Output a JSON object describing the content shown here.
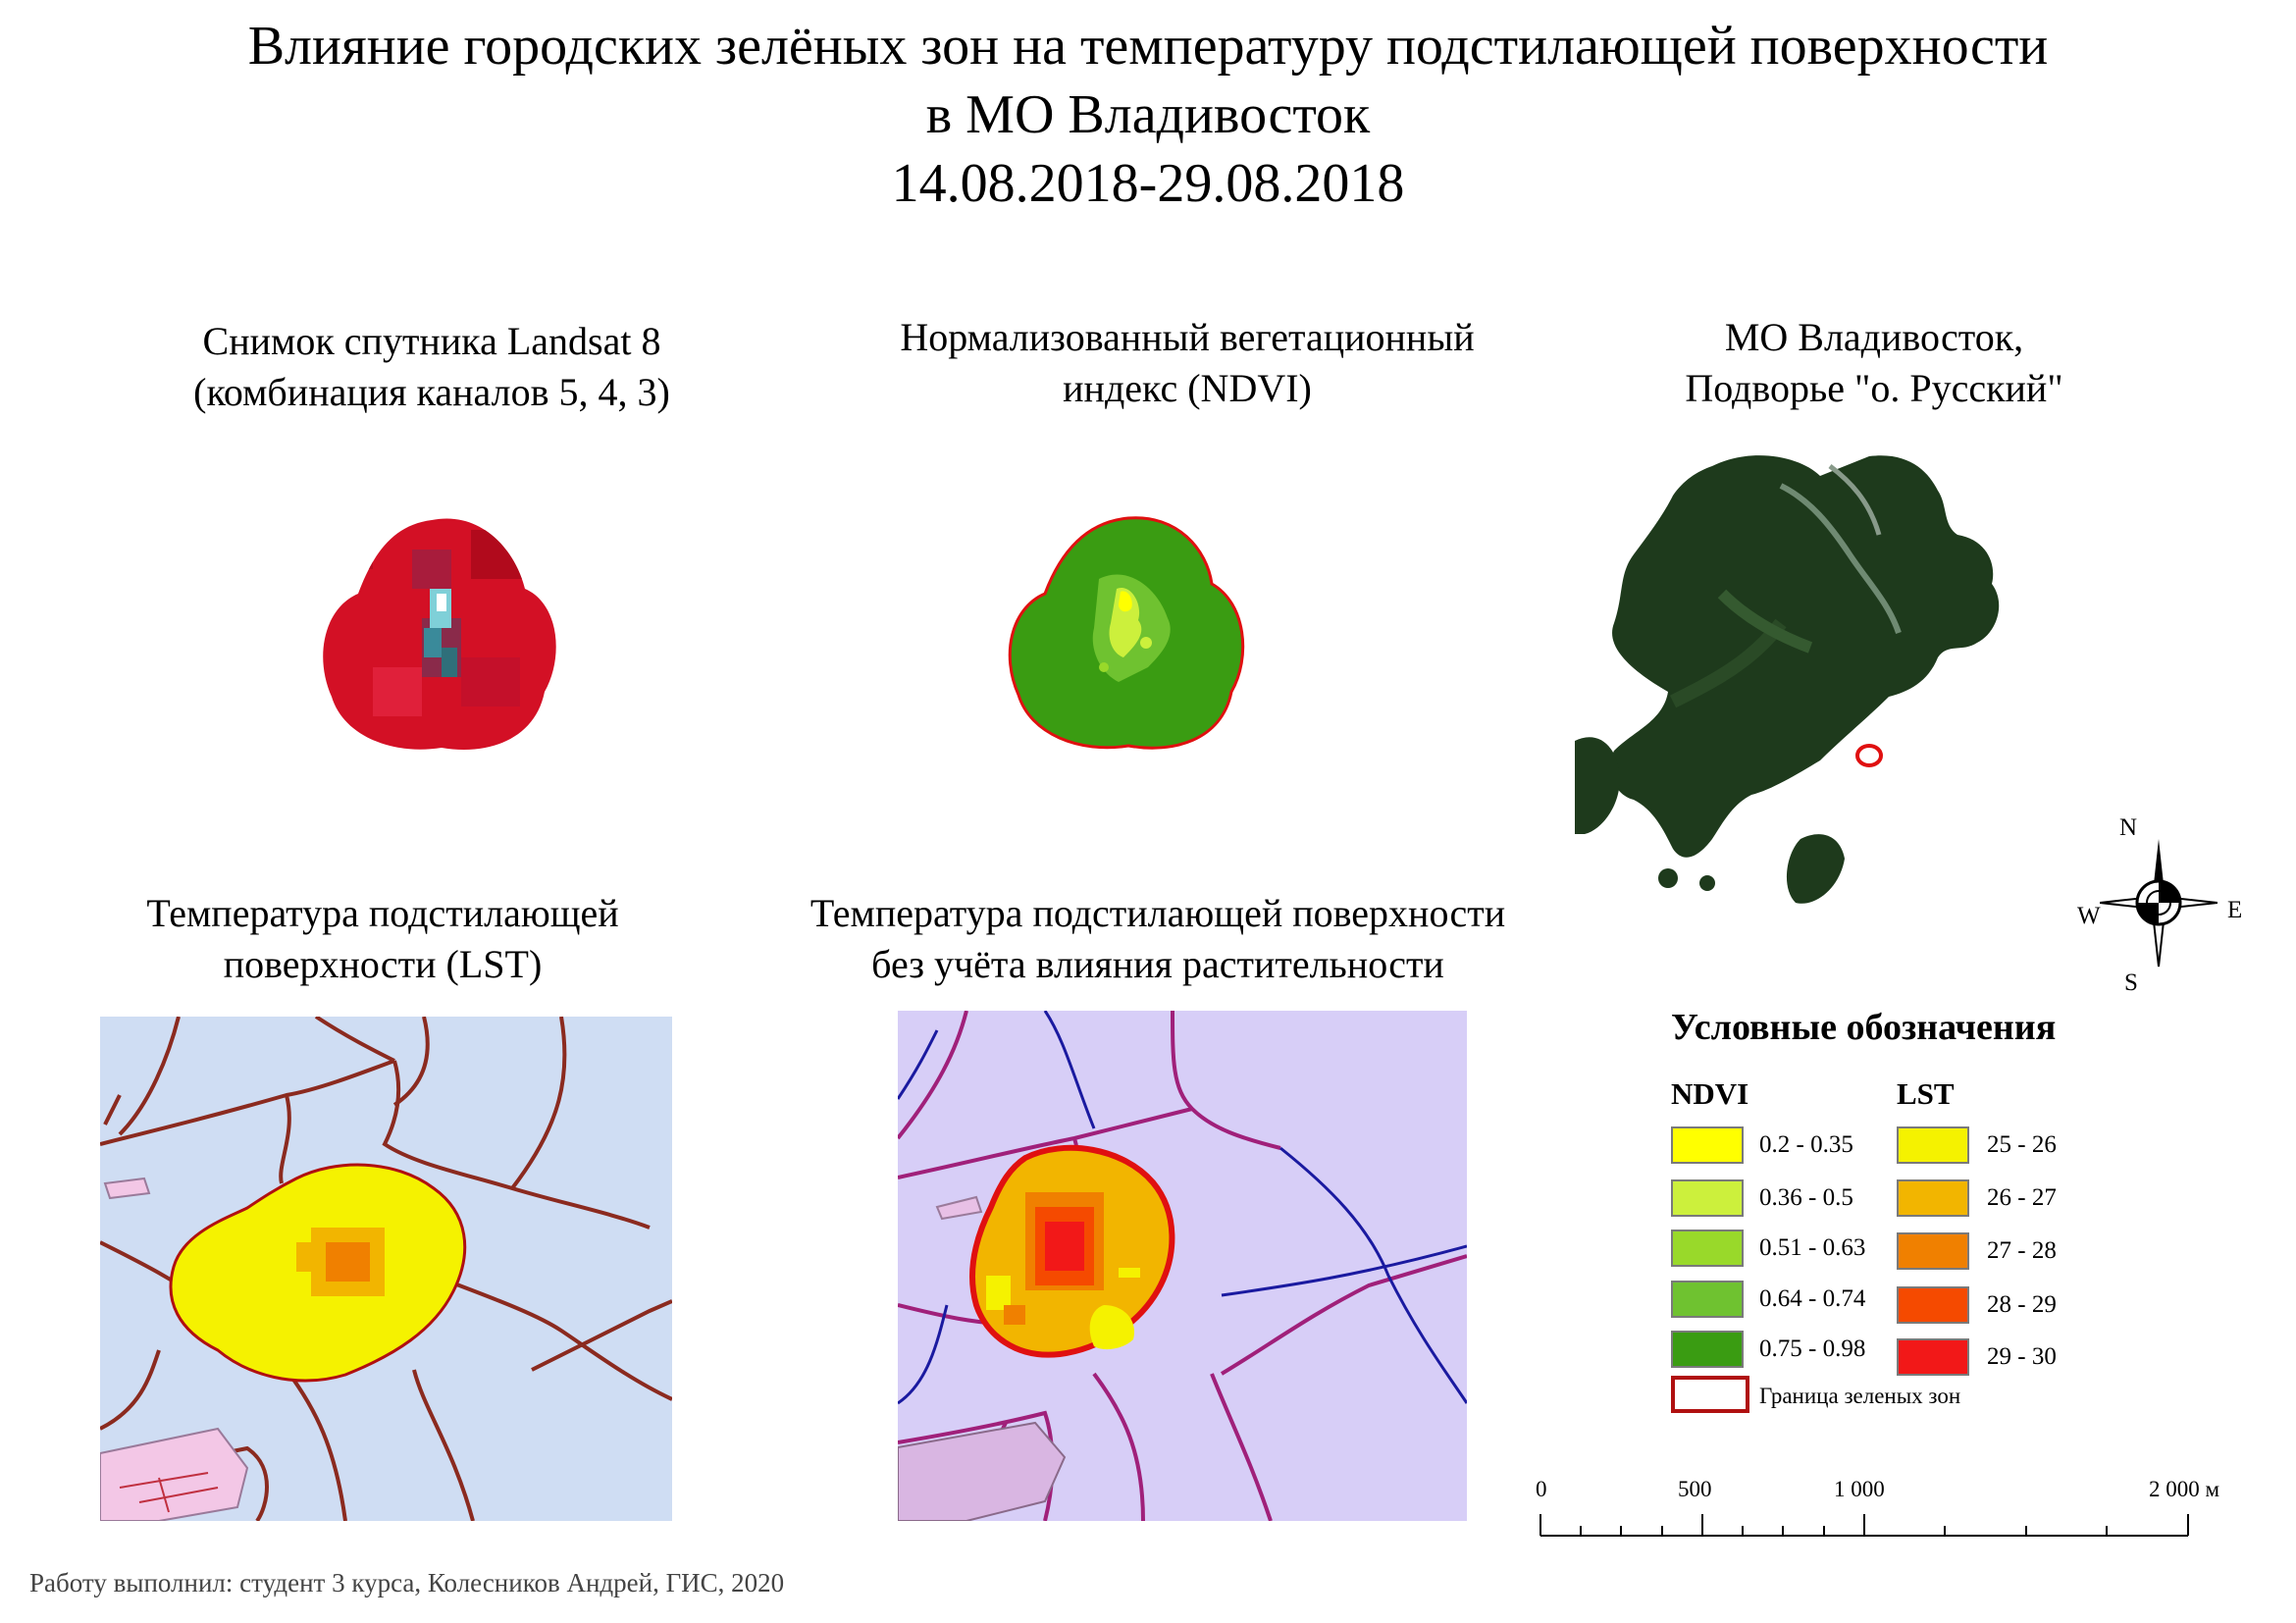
{
  "title": {
    "line1": "Влияние городских зелёных зон на температуру подстилающей поверхности",
    "line2": "в МО Владивосток",
    "line3": "14.08.2018-29.08.2018"
  },
  "panels": {
    "landsat": {
      "line1": "Снимок спутника Landsat 8",
      "line2": "(комбинация каналов 5, 4, 3)"
    },
    "ndvi": {
      "line1": "Нормализованный вегетационный",
      "line2": "индекс (NDVI)"
    },
    "overview": {
      "line1": "МО Владивосток,",
      "line2": "Подворье \"о. Русский\""
    },
    "lst": {
      "line1": "Температура подстилающей",
      "line2": "поверхности (LST)"
    },
    "lst_noveg": {
      "line1": "Температура подстилающей поверхности",
      "line2": "без учёта влияния растительности"
    }
  },
  "compass": {
    "n": "N",
    "s": "S",
    "w": "W",
    "e": "E"
  },
  "legend": {
    "title": "Условные обозначения",
    "ndvi_header": "NDVI",
    "lst_header": "LST",
    "ndvi_items": [
      {
        "label": "0.2 - 0.35",
        "color": "#ffff00"
      },
      {
        "label": "0.36 - 0.5",
        "color": "#ccf03c"
      },
      {
        "label": "0.51 - 0.63",
        "color": "#99d92a"
      },
      {
        "label": "0.64 - 0.74",
        "color": "#6fc230"
      },
      {
        "label": "0.75 - 0.98",
        "color": "#3a9c12"
      }
    ],
    "lst_items": [
      {
        "label": "25 - 26",
        "color": "#f5f200"
      },
      {
        "label": "26 - 27",
        "color": "#f2b500"
      },
      {
        "label": "27 - 28",
        "color": "#f08000"
      },
      {
        "label": "28 - 29",
        "color": "#f54a00"
      },
      {
        "label": "29 - 30",
        "color": "#f21818"
      }
    ],
    "boundary_label": "Граница зеленых зон",
    "boundary_color": "#b01010"
  },
  "scale_bar": {
    "t0": "0",
    "t500": "500",
    "t1000": "1 000",
    "t2000": "2 000 м"
  },
  "footer": "Работу выполнил: студент 3 курса, Колесников Андрей, ГИС, 2020"
}
